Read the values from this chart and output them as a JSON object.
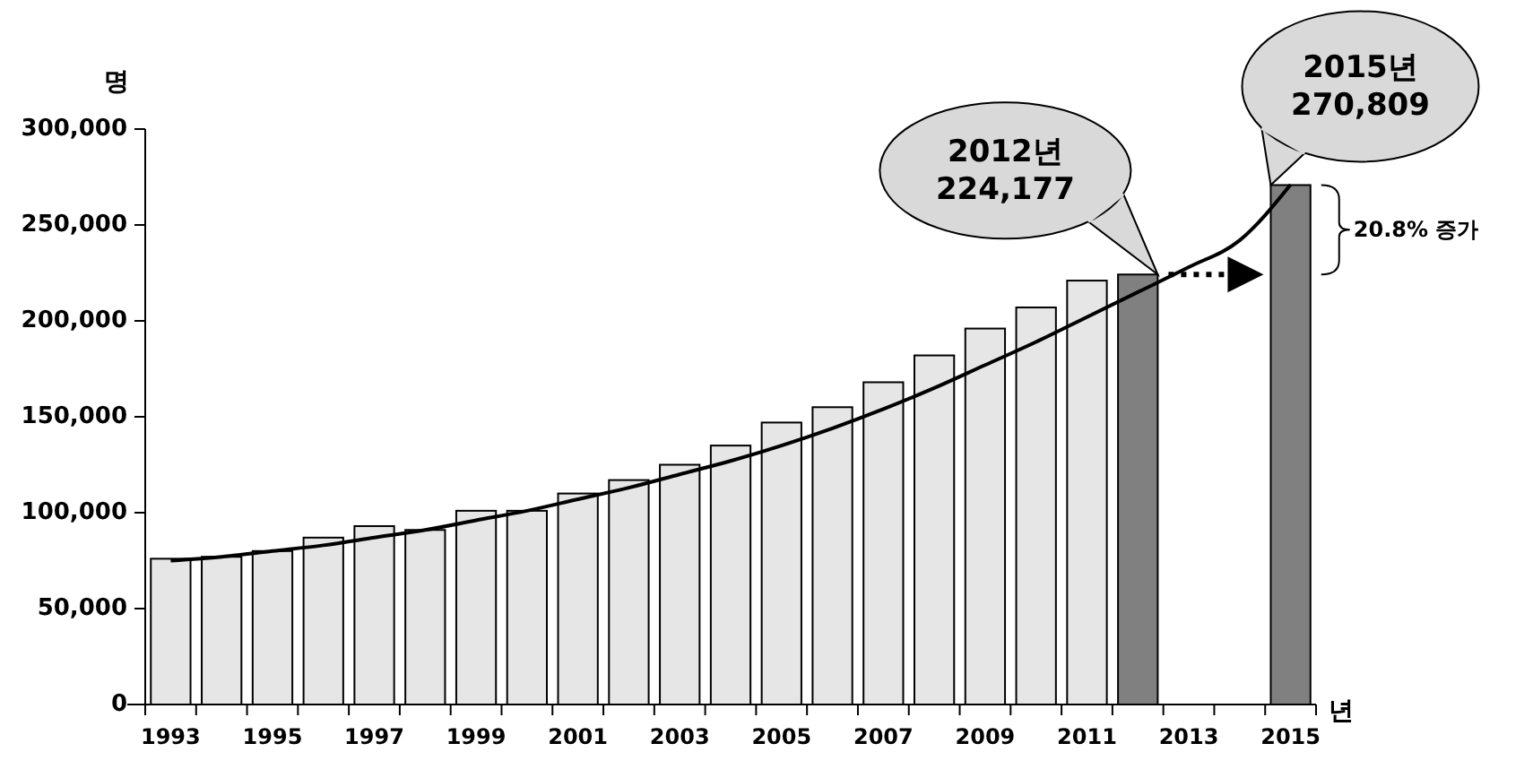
{
  "chart_data": {
    "type": "bar",
    "xlabel": "년",
    "ylabel": "명",
    "categories": [
      "1993",
      null,
      "1995",
      null,
      "1997",
      null,
      "1999",
      null,
      "2001",
      null,
      "2003",
      null,
      "2005",
      null,
      "2007",
      null,
      "2009",
      null,
      "2011",
      null,
      "2013",
      null,
      "2015"
    ],
    "series": [
      {
        "values": [
          76000,
          77000,
          80000,
          87000,
          93000,
          91000,
          101000,
          101000,
          110000,
          117000,
          125000,
          135000,
          147000,
          155000,
          168000,
          182000,
          196000,
          207000,
          221000,
          224177,
          null,
          null,
          270809
        ],
        "colors": [
          "#e6e6e6",
          "#e6e6e6",
          "#e6e6e6",
          "#e6e6e6",
          "#e6e6e6",
          "#e6e6e6",
          "#e6e6e6",
          "#e6e6e6",
          "#e6e6e6",
          "#e6e6e6",
          "#e6e6e6",
          "#e6e6e6",
          "#e6e6e6",
          "#e6e6e6",
          "#e6e6e6",
          "#e6e6e6",
          "#e6e6e6",
          "#e6e6e6",
          "#e6e6e6",
          "#808080",
          null,
          null,
          "#808080"
        ]
      },
      {
        "type": "line",
        "color": "#000000",
        "values": [
          75000,
          77000,
          80000,
          83000,
          87000,
          91000,
          96000,
          101000,
          107000,
          113000,
          120000,
          127000,
          135000,
          144000,
          154000,
          165000,
          177000,
          189000,
          202000,
          215000,
          228000,
          242000,
          271000
        ]
      }
    ],
    "ylim": [
      0,
      300000
    ],
    "yticks": [
      0,
      {
        "value": 50000,
        "label": "50,000"
      },
      {
        "value": 100000,
        "label": "100,000"
      },
      {
        "value": 150000,
        "label": "150,000"
      },
      {
        "value": 200000,
        "label": "200,000"
      },
      {
        "value": 250000,
        "label": "250,000"
      },
      {
        "value": 300000,
        "label": "300,000"
      }
    ],
    "grid": false,
    "annotations": [
      "2012년\n224,177",
      {
        "text": "2015년\n270,809",
        "x": "2015",
        "y": 270809
      },
      "20.8% 증가"
    ]
  }
}
